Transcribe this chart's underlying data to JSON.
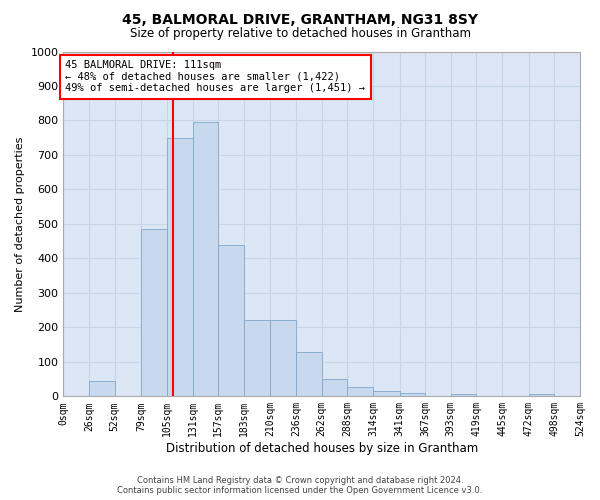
{
  "title": "45, BALMORAL DRIVE, GRANTHAM, NG31 8SY",
  "subtitle": "Size of property relative to detached houses in Grantham",
  "xlabel": "Distribution of detached houses by size in Grantham",
  "ylabel": "Number of detached properties",
  "bin_edges": [
    0,
    26,
    52,
    79,
    105,
    131,
    157,
    183,
    210,
    236,
    262,
    288,
    314,
    341,
    367,
    393,
    419,
    445,
    472,
    498,
    524
  ],
  "bar_heights": [
    0,
    45,
    0,
    485,
    750,
    795,
    440,
    220,
    220,
    130,
    50,
    28,
    15,
    10,
    0,
    7,
    0,
    0,
    8,
    0
  ],
  "bar_color": "#c8d9ed",
  "bar_edge_color": "#7fa8cc",
  "vline_x": 111,
  "vline_color": "red",
  "annotation_text": "45 BALMORAL DRIVE: 111sqm\n← 48% of detached houses are smaller (1,422)\n49% of semi-detached houses are larger (1,451) →",
  "annotation_box_color": "white",
  "annotation_box_edge_color": "red",
  "ylim": [
    0,
    1000
  ],
  "yticks": [
    0,
    100,
    200,
    300,
    400,
    500,
    600,
    700,
    800,
    900,
    1000
  ],
  "grid_color": "#c8d4e8",
  "plot_bg_color": "#dce6f5",
  "footer_line1": "Contains HM Land Registry data © Crown copyright and database right 2024.",
  "footer_line2": "Contains public sector information licensed under the Open Government Licence v3.0.",
  "tick_labels": [
    "0sqm",
    "26sqm",
    "52sqm",
    "79sqm",
    "105sqm",
    "131sqm",
    "157sqm",
    "183sqm",
    "210sqm",
    "236sqm",
    "262sqm",
    "288sqm",
    "314sqm",
    "341sqm",
    "367sqm",
    "393sqm",
    "419sqm",
    "445sqm",
    "472sqm",
    "498sqm",
    "524sqm"
  ]
}
